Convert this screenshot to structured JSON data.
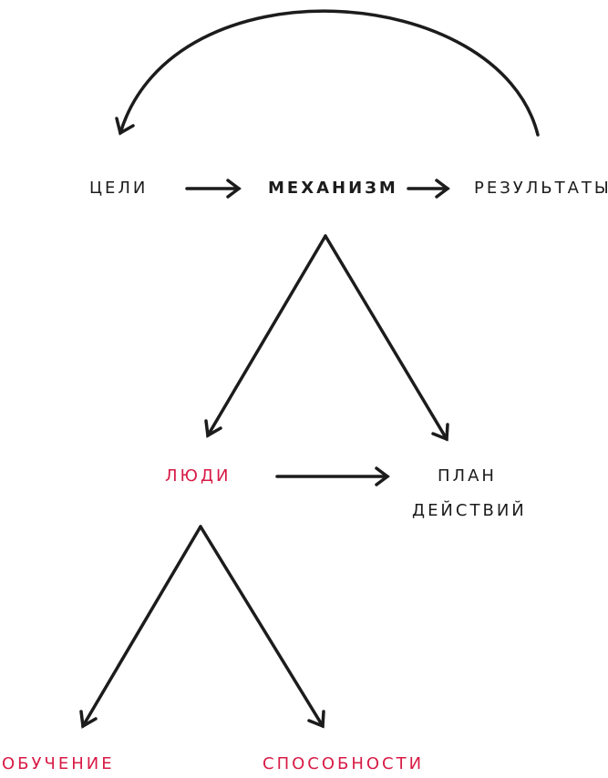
{
  "nodes": {
    "goals": "ЦЕЛИ",
    "mechanism": "МЕХАНИЗМ",
    "results": "РЕЗУЛЬТАТЫ",
    "people": "ЛЮДИ",
    "action_plan_line1": "ПЛАН",
    "action_plan_line2": "ДЕЙСТВИЙ",
    "training": "ОБУЧЕНИЕ",
    "abilities": "СПОСОБНОСТИ"
  },
  "colors": {
    "ink": "#1c1c1c",
    "accent": "#d81b46"
  }
}
